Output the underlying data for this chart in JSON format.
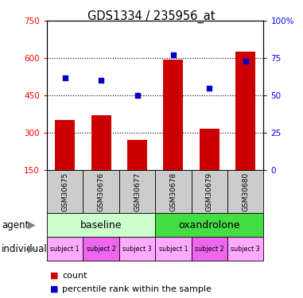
{
  "title": "GDS1334 / 235956_at",
  "samples": [
    "GSM30675",
    "GSM30676",
    "GSM30677",
    "GSM30678",
    "GSM30679",
    "GSM30680"
  ],
  "bar_values": [
    350,
    370,
    270,
    595,
    315,
    625
  ],
  "bar_bottom": 150,
  "percentile_values": [
    62,
    60,
    50,
    77,
    55,
    73
  ],
  "ylim_left": [
    150,
    750
  ],
  "ylim_right": [
    0,
    100
  ],
  "yticks_left": [
    150,
    300,
    450,
    600,
    750
  ],
  "ytick_labels_left": [
    "150",
    "300",
    "450",
    "600",
    "750"
  ],
  "yticks_right": [
    0,
    25,
    50,
    75,
    100
  ],
  "ytick_labels_right": [
    "0",
    "25",
    "50",
    "75",
    "100%"
  ],
  "bar_color": "#cc0000",
  "dot_color": "#0000cc",
  "agent_labels": [
    "baseline",
    "oxandrolone"
  ],
  "agent_baseline_color": "#ccffcc",
  "agent_oxandrolone_color": "#44dd44",
  "individual_labels": [
    "subject 1",
    "subject 2",
    "subject 3",
    "subject 1",
    "subject 2",
    "subject 3"
  ],
  "individual_colors": [
    "#ffaaff",
    "#ee66ee",
    "#ffaaff",
    "#ffaaff",
    "#ee66ee",
    "#ffaaff"
  ],
  "sample_bg_color": "#cccccc",
  "legend_count_color": "#cc0000",
  "legend_pct_color": "#0000cc"
}
